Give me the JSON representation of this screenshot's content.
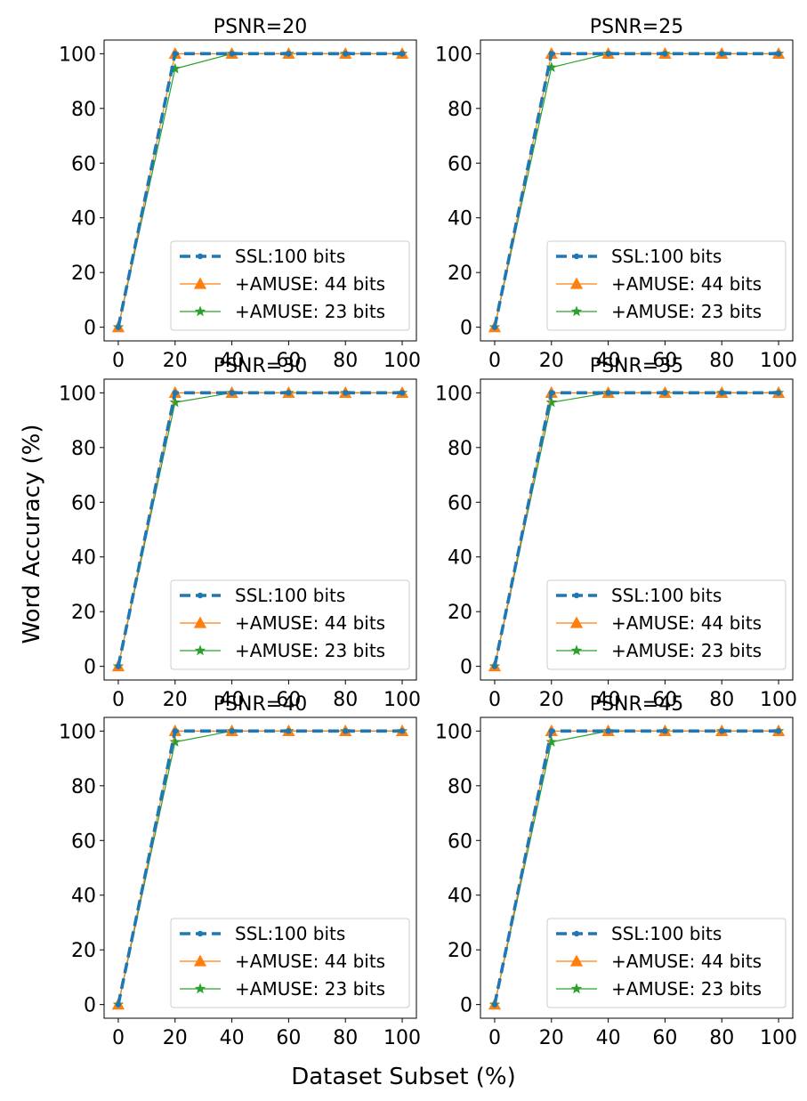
{
  "figure": {
    "xlabel": "Dataset Subset (%)",
    "ylabel": "Word Accuracy (%)"
  },
  "chart_data": [
    {
      "type": "line",
      "title": "PSNR=20",
      "x": [
        0,
        20,
        40,
        60,
        80,
        100
      ],
      "xlim": [
        -5,
        105
      ],
      "ylim": [
        -5,
        105
      ],
      "xticks": [
        0,
        20,
        40,
        60,
        80,
        100
      ],
      "yticks": [
        0,
        20,
        40,
        60,
        80,
        100
      ],
      "grid": false,
      "legend": "lower-right",
      "series": [
        {
          "name": "SSL:100 bits",
          "values": [
            0,
            100,
            100,
            100,
            100,
            100
          ],
          "color": "#1f77b4",
          "style": "dashed",
          "marker": "dot"
        },
        {
          "name": "+AMUSE: 44 bits",
          "values": [
            0,
            100,
            100,
            100,
            100,
            100
          ],
          "color": "#ff7f0e",
          "style": "solid",
          "marker": "triangle"
        },
        {
          "name": "+AMUSE: 23 bits",
          "values": [
            0,
            94.5,
            100,
            100,
            100,
            100
          ],
          "color": "#2ca02c",
          "style": "solid",
          "marker": "star"
        }
      ]
    },
    {
      "type": "line",
      "title": "PSNR=25",
      "x": [
        0,
        20,
        40,
        60,
        80,
        100
      ],
      "xlim": [
        -5,
        105
      ],
      "ylim": [
        -5,
        105
      ],
      "xticks": [
        0,
        20,
        40,
        60,
        80,
        100
      ],
      "yticks": [
        0,
        20,
        40,
        60,
        80,
        100
      ],
      "grid": false,
      "legend": "lower-right",
      "series": [
        {
          "name": "SSL:100 bits",
          "values": [
            0,
            100,
            100,
            100,
            100,
            100
          ],
          "color": "#1f77b4",
          "style": "dashed",
          "marker": "dot"
        },
        {
          "name": "+AMUSE: 44 bits",
          "values": [
            0,
            100,
            100,
            100,
            100,
            100
          ],
          "color": "#ff7f0e",
          "style": "solid",
          "marker": "triangle"
        },
        {
          "name": "+AMUSE: 23 bits",
          "values": [
            0,
            95,
            100,
            100,
            100,
            100
          ],
          "color": "#2ca02c",
          "style": "solid",
          "marker": "star"
        }
      ]
    },
    {
      "type": "line",
      "title": "PSNR=30",
      "x": [
        0,
        20,
        40,
        60,
        80,
        100
      ],
      "xlim": [
        -5,
        105
      ],
      "ylim": [
        -5,
        105
      ],
      "xticks": [
        0,
        20,
        40,
        60,
        80,
        100
      ],
      "yticks": [
        0,
        20,
        40,
        60,
        80,
        100
      ],
      "grid": false,
      "legend": "lower-right",
      "series": [
        {
          "name": "SSL:100 bits",
          "values": [
            0,
            100,
            100,
            100,
            100,
            100
          ],
          "color": "#1f77b4",
          "style": "dashed",
          "marker": "dot"
        },
        {
          "name": "+AMUSE: 44 bits",
          "values": [
            0,
            100,
            100,
            100,
            100,
            100
          ],
          "color": "#ff7f0e",
          "style": "solid",
          "marker": "triangle"
        },
        {
          "name": "+AMUSE: 23 bits",
          "values": [
            0,
            96.5,
            100,
            100,
            100,
            100
          ],
          "color": "#2ca02c",
          "style": "solid",
          "marker": "star"
        }
      ]
    },
    {
      "type": "line",
      "title": "PSNR=35",
      "x": [
        0,
        20,
        40,
        60,
        80,
        100
      ],
      "xlim": [
        -5,
        105
      ],
      "ylim": [
        -5,
        105
      ],
      "xticks": [
        0,
        20,
        40,
        60,
        80,
        100
      ],
      "yticks": [
        0,
        20,
        40,
        60,
        80,
        100
      ],
      "grid": false,
      "legend": "lower-right",
      "series": [
        {
          "name": "SSL:100 bits",
          "values": [
            0,
            100,
            100,
            100,
            100,
            100
          ],
          "color": "#1f77b4",
          "style": "dashed",
          "marker": "dot"
        },
        {
          "name": "+AMUSE: 44 bits",
          "values": [
            0,
            100,
            100,
            100,
            100,
            100
          ],
          "color": "#ff7f0e",
          "style": "solid",
          "marker": "triangle"
        },
        {
          "name": "+AMUSE: 23 bits",
          "values": [
            0,
            96.5,
            100,
            100,
            100,
            100
          ],
          "color": "#2ca02c",
          "style": "solid",
          "marker": "star"
        }
      ]
    },
    {
      "type": "line",
      "title": "PSNR=40",
      "x": [
        0,
        20,
        40,
        60,
        80,
        100
      ],
      "xlim": [
        -5,
        105
      ],
      "ylim": [
        -5,
        105
      ],
      "xticks": [
        0,
        20,
        40,
        60,
        80,
        100
      ],
      "yticks": [
        0,
        20,
        40,
        60,
        80,
        100
      ],
      "grid": false,
      "legend": "lower-right",
      "series": [
        {
          "name": "SSL:100 bits",
          "values": [
            0,
            100,
            100,
            100,
            100,
            100
          ],
          "color": "#1f77b4",
          "style": "dashed",
          "marker": "dot"
        },
        {
          "name": "+AMUSE: 44 bits",
          "values": [
            0,
            100,
            100,
            100,
            100,
            100
          ],
          "color": "#ff7f0e",
          "style": "solid",
          "marker": "triangle"
        },
        {
          "name": "+AMUSE: 23 bits",
          "values": [
            0,
            96,
            100,
            100,
            100,
            100
          ],
          "color": "#2ca02c",
          "style": "solid",
          "marker": "star"
        }
      ]
    },
    {
      "type": "line",
      "title": "PSNR=45",
      "x": [
        0,
        20,
        40,
        60,
        80,
        100
      ],
      "xlim": [
        -5,
        105
      ],
      "ylim": [
        -5,
        105
      ],
      "xticks": [
        0,
        20,
        40,
        60,
        80,
        100
      ],
      "yticks": [
        0,
        20,
        40,
        60,
        80,
        100
      ],
      "grid": false,
      "legend": "lower-right",
      "series": [
        {
          "name": "SSL:100 bits",
          "values": [
            0,
            100,
            100,
            100,
            100,
            100
          ],
          "color": "#1f77b4",
          "style": "dashed",
          "marker": "dot"
        },
        {
          "name": "+AMUSE: 44 bits",
          "values": [
            0,
            100,
            100,
            100,
            100,
            100
          ],
          "color": "#ff7f0e",
          "style": "solid",
          "marker": "triangle"
        },
        {
          "name": "+AMUSE: 23 bits",
          "values": [
            0,
            96,
            100,
            100,
            100,
            100
          ],
          "color": "#2ca02c",
          "style": "solid",
          "marker": "star"
        }
      ]
    }
  ]
}
